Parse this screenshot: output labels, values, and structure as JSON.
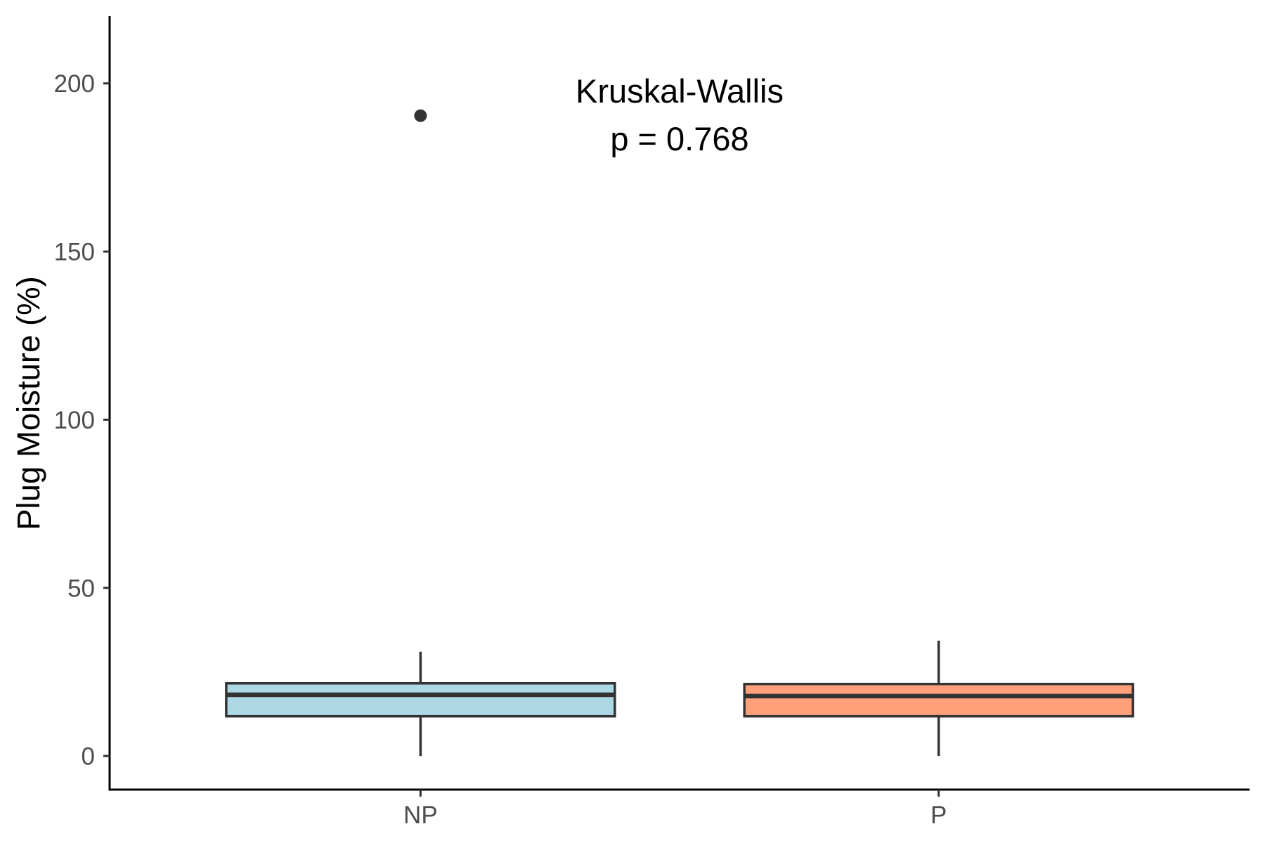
{
  "chart_data": {
    "type": "box",
    "categories": [
      "NP",
      "P"
    ],
    "boxes": [
      {
        "min": 0,
        "q1": 11.8,
        "median": 18.2,
        "q3": 21.6,
        "max": 31.0,
        "outliers": [
          190.4
        ],
        "fill": "#ADD8E6"
      },
      {
        "min": 0,
        "q1": 11.8,
        "median": 17.8,
        "q3": 21.4,
        "max": 34.3,
        "outliers": [],
        "fill": "#FFA07A"
      }
    ],
    "ylabel": "Plug Moisture (%)",
    "ylim": [
      -10,
      220
    ],
    "yticks": [
      0,
      50,
      100,
      150,
      200
    ],
    "annotation": {
      "test": "Kruskal-Wallis",
      "p_value": "p = 0.768"
    },
    "grid": false,
    "legend": false,
    "outline_color": "#333333"
  }
}
